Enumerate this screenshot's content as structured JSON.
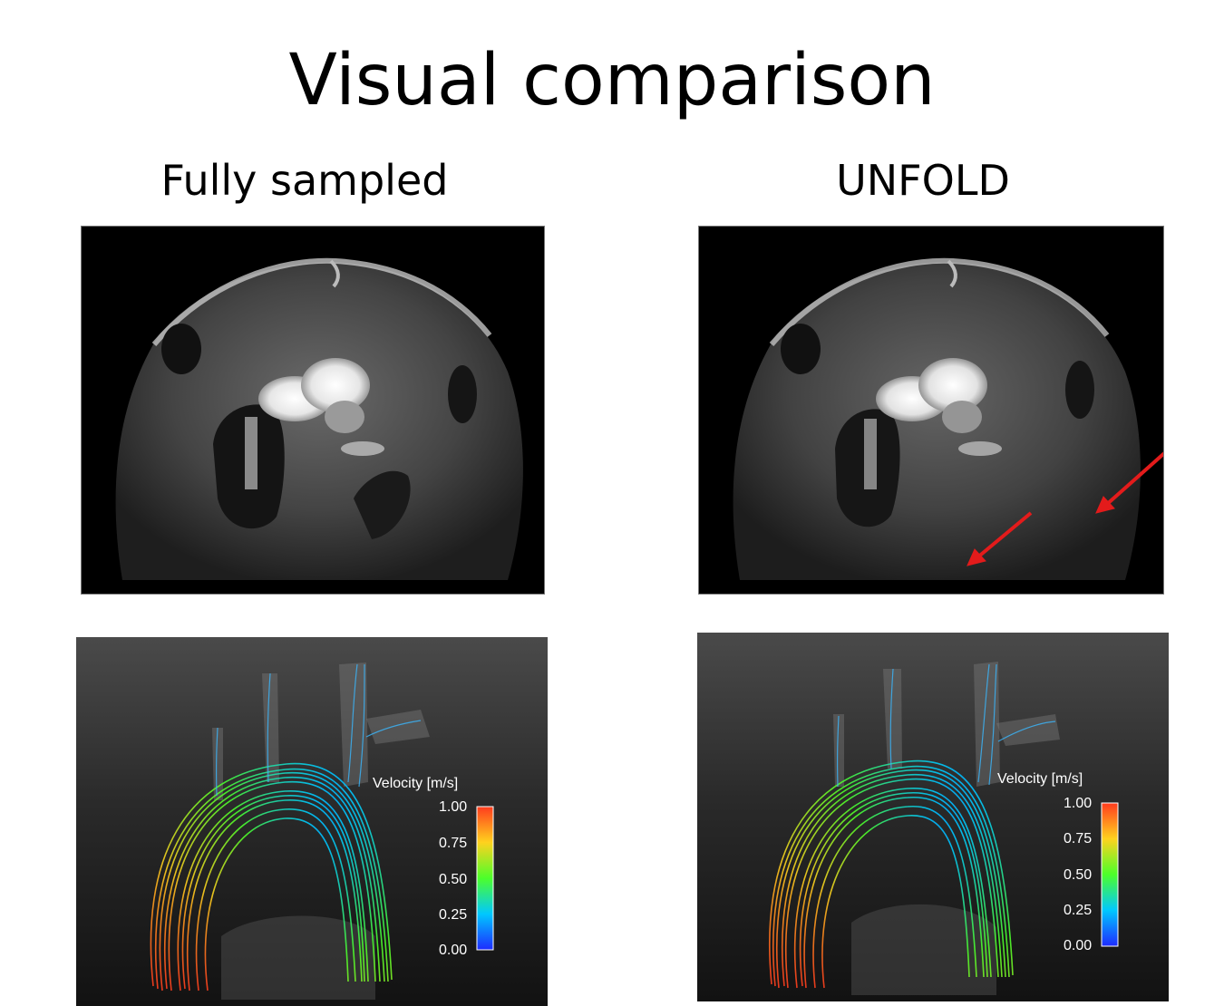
{
  "slide": {
    "title": "Visual comparison",
    "columns": [
      {
        "label": "Fully sampled"
      },
      {
        "label": "UNFOLD"
      }
    ]
  },
  "legend": {
    "title": "Velocity [m/s]",
    "ticks": [
      "1.00",
      "0.75",
      "0.50",
      "0.25",
      "0.00"
    ],
    "colors": [
      "#ff3b1e",
      "#ffd21e",
      "#4cff2a",
      "#00c8ff",
      "#1e2bff"
    ]
  },
  "annotations": {
    "arrow_color": "#e31b1b"
  }
}
